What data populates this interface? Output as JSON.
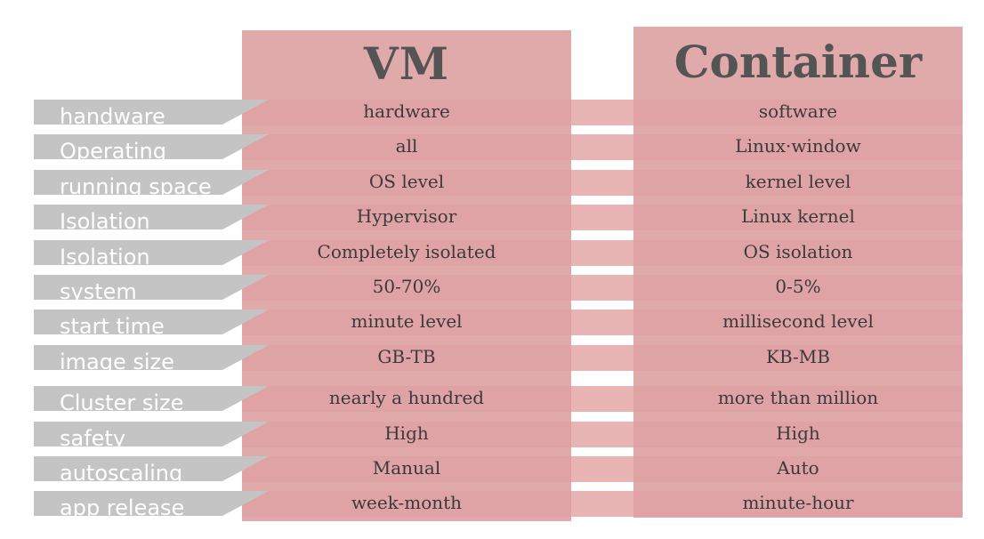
{
  "headers": {
    "vm": "VM",
    "container": "Container"
  },
  "rows": [
    {
      "label": "handware",
      "vm": "hardware",
      "container": "software"
    },
    {
      "label": "Operating",
      "vm": "all",
      "container": "Linux·window"
    },
    {
      "label": "running space",
      "vm": "OS level",
      "container": "kernel level"
    },
    {
      "label": "Isolation",
      "vm": "Hypervisor",
      "container": "Linux kernel"
    },
    {
      "label": "Isolation",
      "vm": "Completely isolated",
      "container": "OS isolation"
    },
    {
      "label": "system",
      "vm": "50-70%",
      "container": "0-5%"
    },
    {
      "label": "start time",
      "vm": "minute level",
      "container": "millisecond level"
    },
    {
      "label": "image size",
      "vm": "GB-TB",
      "container": "KB-MB"
    },
    {
      "label": "Cluster size",
      "vm": "nearly a hundred",
      "container": "more than million"
    },
    {
      "label": "safety",
      "vm": "High",
      "container": "High"
    },
    {
      "label": "autoscaling",
      "vm": "Manual",
      "container": "Auto"
    },
    {
      "label": "app release",
      "vm": "week-month",
      "container": "minute-hour"
    }
  ]
}
